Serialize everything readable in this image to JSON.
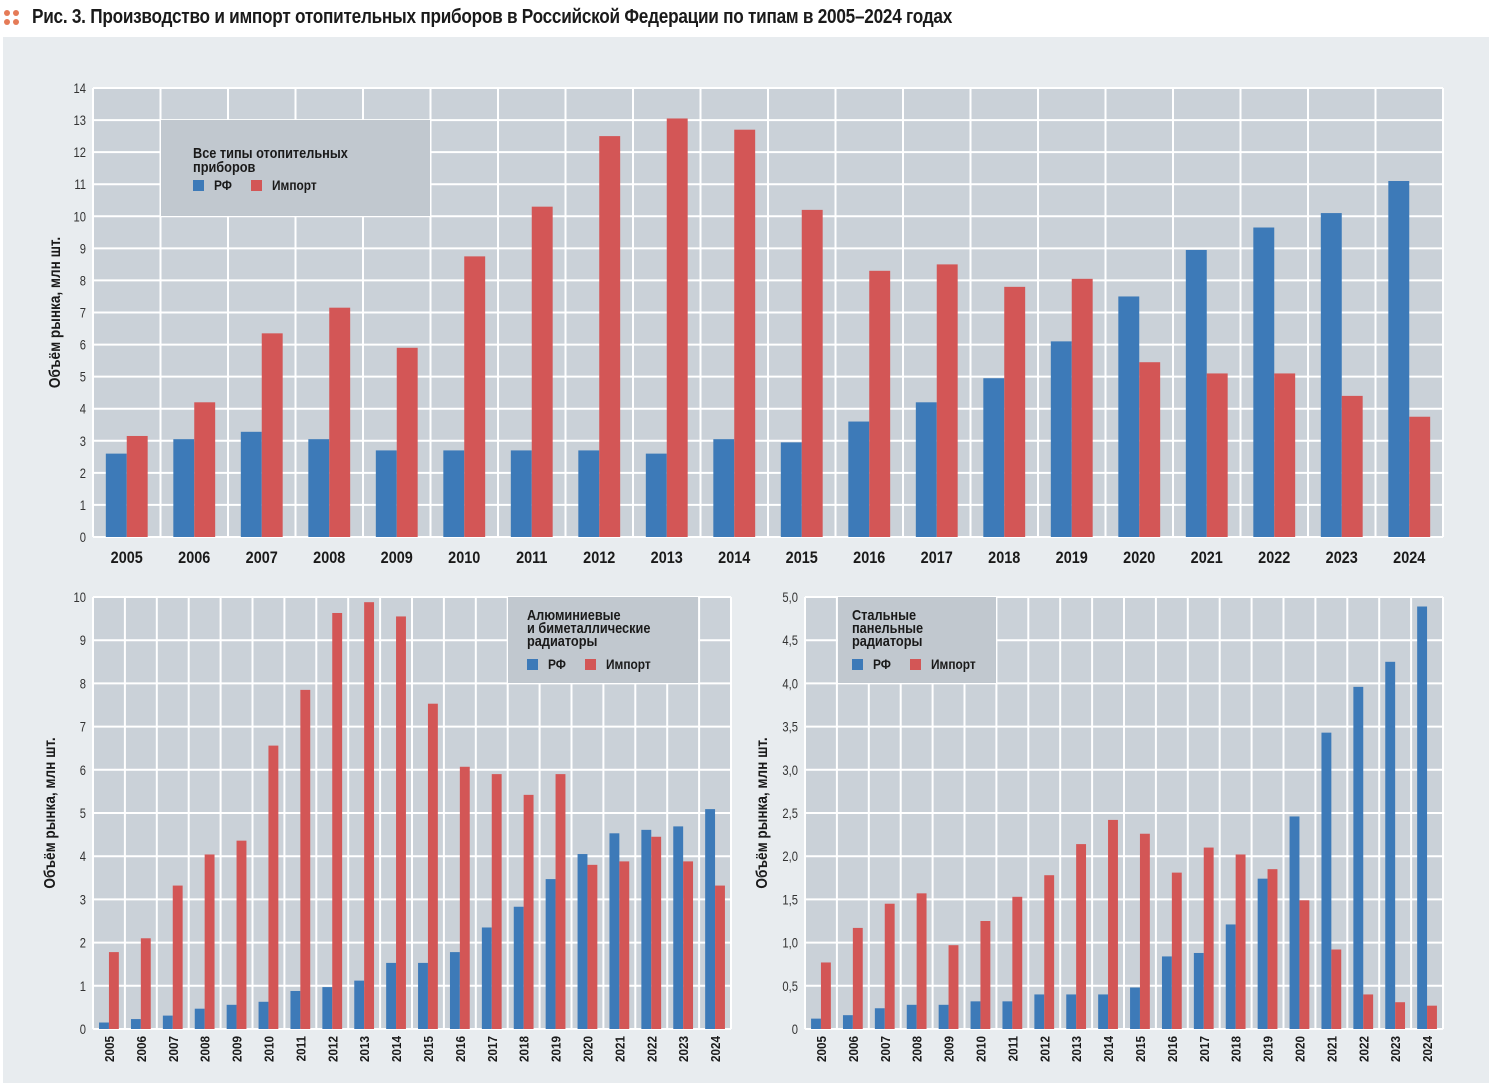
{
  "figure": {
    "title": "Рис. 3. Производство и импорт отопительных приборов в Российской Федерации по типам в 2005–2024 годах",
    "icon": "dots-icon",
    "colors": {
      "rf": "#3d7ab8",
      "import": "#d35656",
      "plot_bg": "#cad1d8",
      "legend_bg": "#c1c8cf",
      "panel_bg": "#e8ecef",
      "grid": "#ffffff",
      "title_dots": "#e57b57"
    }
  },
  "chart_data": [
    {
      "id": "all-types",
      "type": "bar",
      "title": "Все типы отопительных приборов",
      "title_lines": [
        "Все типы отопительных",
        "приборов"
      ],
      "xlabel": "",
      "ylabel": "Объём рынка, млн шт.",
      "ylim": [
        0,
        14
      ],
      "yticks": [
        0,
        1,
        2,
        3,
        4,
        5,
        6,
        7,
        8,
        9,
        10,
        11,
        12,
        13,
        14
      ],
      "ytick_labels": [
        "0",
        "1",
        "2",
        "3",
        "4",
        "5",
        "6",
        "7",
        "8",
        "9",
        "10",
        "11",
        "12",
        "13",
        "14"
      ],
      "grid": true,
      "legend_position": "top-left",
      "x_label_orientation": "horizontal",
      "categories": [
        "2005",
        "2006",
        "2007",
        "2008",
        "2009",
        "2010",
        "2011",
        "2012",
        "2013",
        "2014",
        "2015",
        "2016",
        "2017",
        "2018",
        "2019",
        "2020",
        "2021",
        "2022",
        "2023",
        "2024"
      ],
      "series": [
        {
          "name": "РФ",
          "color_key": "rf",
          "values": [
            2.6,
            3.05,
            3.28,
            3.05,
            2.7,
            2.7,
            2.7,
            2.7,
            2.6,
            3.05,
            2.95,
            3.6,
            4.2,
            4.95,
            6.1,
            7.5,
            8.95,
            9.65,
            10.1,
            11.1
          ]
        },
        {
          "name": "Импорт",
          "color_key": "import",
          "values": [
            3.15,
            4.2,
            6.35,
            7.15,
            5.9,
            8.75,
            10.3,
            12.5,
            13.05,
            12.7,
            10.2,
            8.3,
            8.5,
            7.8,
            8.05,
            5.45,
            5.1,
            5.1,
            4.4,
            3.75
          ]
        }
      ]
    },
    {
      "id": "aluminium-bimetal",
      "type": "bar",
      "title": "Алюминиевые и биметаллические радиаторы",
      "title_lines": [
        "Алюминиевые",
        "и биметаллические",
        "радиаторы"
      ],
      "xlabel": "",
      "ylabel": "Объём рынка, млн шт.",
      "ylim": [
        0,
        10
      ],
      "yticks": [
        0,
        1,
        2,
        3,
        4,
        5,
        6,
        7,
        8,
        9,
        10
      ],
      "ytick_labels": [
        "0",
        "1",
        "2",
        "3",
        "4",
        "5",
        "6",
        "7",
        "8",
        "9",
        "10"
      ],
      "grid": true,
      "legend_position": "top-right",
      "x_label_orientation": "vertical",
      "categories": [
        "2005",
        "2006",
        "2007",
        "2008",
        "2009",
        "2010",
        "2011",
        "2012",
        "2013",
        "2014",
        "2015",
        "2016",
        "2017",
        "2018",
        "2019",
        "2020",
        "2021",
        "2022",
        "2023",
        "2024"
      ],
      "series": [
        {
          "name": "РФ",
          "color_key": "rf",
          "values": [
            0.15,
            0.23,
            0.31,
            0.47,
            0.56,
            0.63,
            0.88,
            0.97,
            1.12,
            1.53,
            1.53,
            1.78,
            2.35,
            2.83,
            3.47,
            4.05,
            4.53,
            4.61,
            4.69,
            5.09
          ]
        },
        {
          "name": "Импорт",
          "color_key": "import",
          "values": [
            1.78,
            2.1,
            3.32,
            4.04,
            4.36,
            6.56,
            7.85,
            9.63,
            9.88,
            9.55,
            7.53,
            6.07,
            5.9,
            5.42,
            5.9,
            3.8,
            3.88,
            4.45,
            3.88,
            3.32
          ]
        }
      ]
    },
    {
      "id": "steel-panel",
      "type": "bar",
      "title": "Стальные панельные радиаторы",
      "title_lines": [
        "Стальные",
        "панельные",
        "радиаторы"
      ],
      "xlabel": "",
      "ylabel": "Объём рынка, млн шт.",
      "ylim": [
        0,
        5
      ],
      "yticks": [
        0,
        0.5,
        1,
        1.5,
        2,
        2.5,
        3,
        3.5,
        4,
        4.5,
        5
      ],
      "ytick_labels": [
        "0",
        "0,5",
        "1,0",
        "1,5",
        "2,0",
        "2,5",
        "3,0",
        "3,5",
        "4,0",
        "4,5",
        "5,0"
      ],
      "grid": true,
      "legend_position": "top-left",
      "x_label_orientation": "vertical",
      "categories": [
        "2005",
        "2006",
        "2007",
        "2008",
        "2009",
        "2010",
        "2011",
        "2012",
        "2013",
        "2014",
        "2015",
        "2016",
        "2017",
        "2018",
        "2019",
        "2020",
        "2021",
        "2022",
        "2023",
        "2024"
      ],
      "series": [
        {
          "name": "РФ",
          "color_key": "rf",
          "values": [
            0.12,
            0.16,
            0.24,
            0.28,
            0.28,
            0.32,
            0.32,
            0.4,
            0.4,
            0.4,
            0.48,
            0.84,
            0.88,
            1.21,
            1.74,
            2.46,
            3.43,
            3.96,
            4.25,
            4.89
          ]
        },
        {
          "name": "Импорт",
          "color_key": "import",
          "values": [
            0.77,
            1.17,
            1.45,
            1.57,
            0.97,
            1.25,
            1.53,
            1.78,
            2.14,
            2.42,
            2.26,
            1.81,
            2.1,
            2.02,
            1.85,
            1.49,
            0.92,
            0.4,
            0.31,
            0.27
          ]
        }
      ]
    }
  ]
}
